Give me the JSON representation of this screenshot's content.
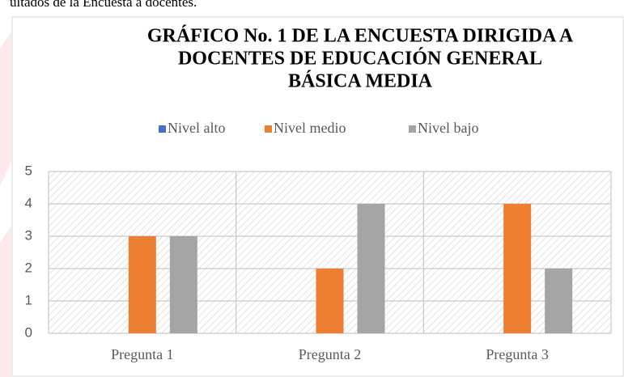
{
  "caption": "ultados de la Encuesta a docentes.",
  "chart_data": {
    "type": "bar",
    "title": [
      "GRÁFICO No. 1 DE LA ENCUESTA DIRIGIDA A",
      "DOCENTES DE EDUCACIÓN GENERAL",
      "BÁSICA MEDIA"
    ],
    "categories": [
      "Pregunta 1",
      "Pregunta 2",
      "Pregunta 3"
    ],
    "series": [
      {
        "name": "Nivel alto",
        "color": "#4472c4",
        "values": [
          0,
          0,
          0
        ]
      },
      {
        "name": "Nivel medio",
        "color": "#ed7d31",
        "values": [
          3,
          2,
          4
        ]
      },
      {
        "name": "Nivel bajo",
        "color": "#a5a5a5",
        "values": [
          3,
          4,
          2
        ]
      }
    ],
    "ylim": [
      0,
      5
    ],
    "yticks": [
      0,
      1,
      2,
      3,
      4,
      5
    ],
    "grid": true,
    "legend": "top"
  }
}
